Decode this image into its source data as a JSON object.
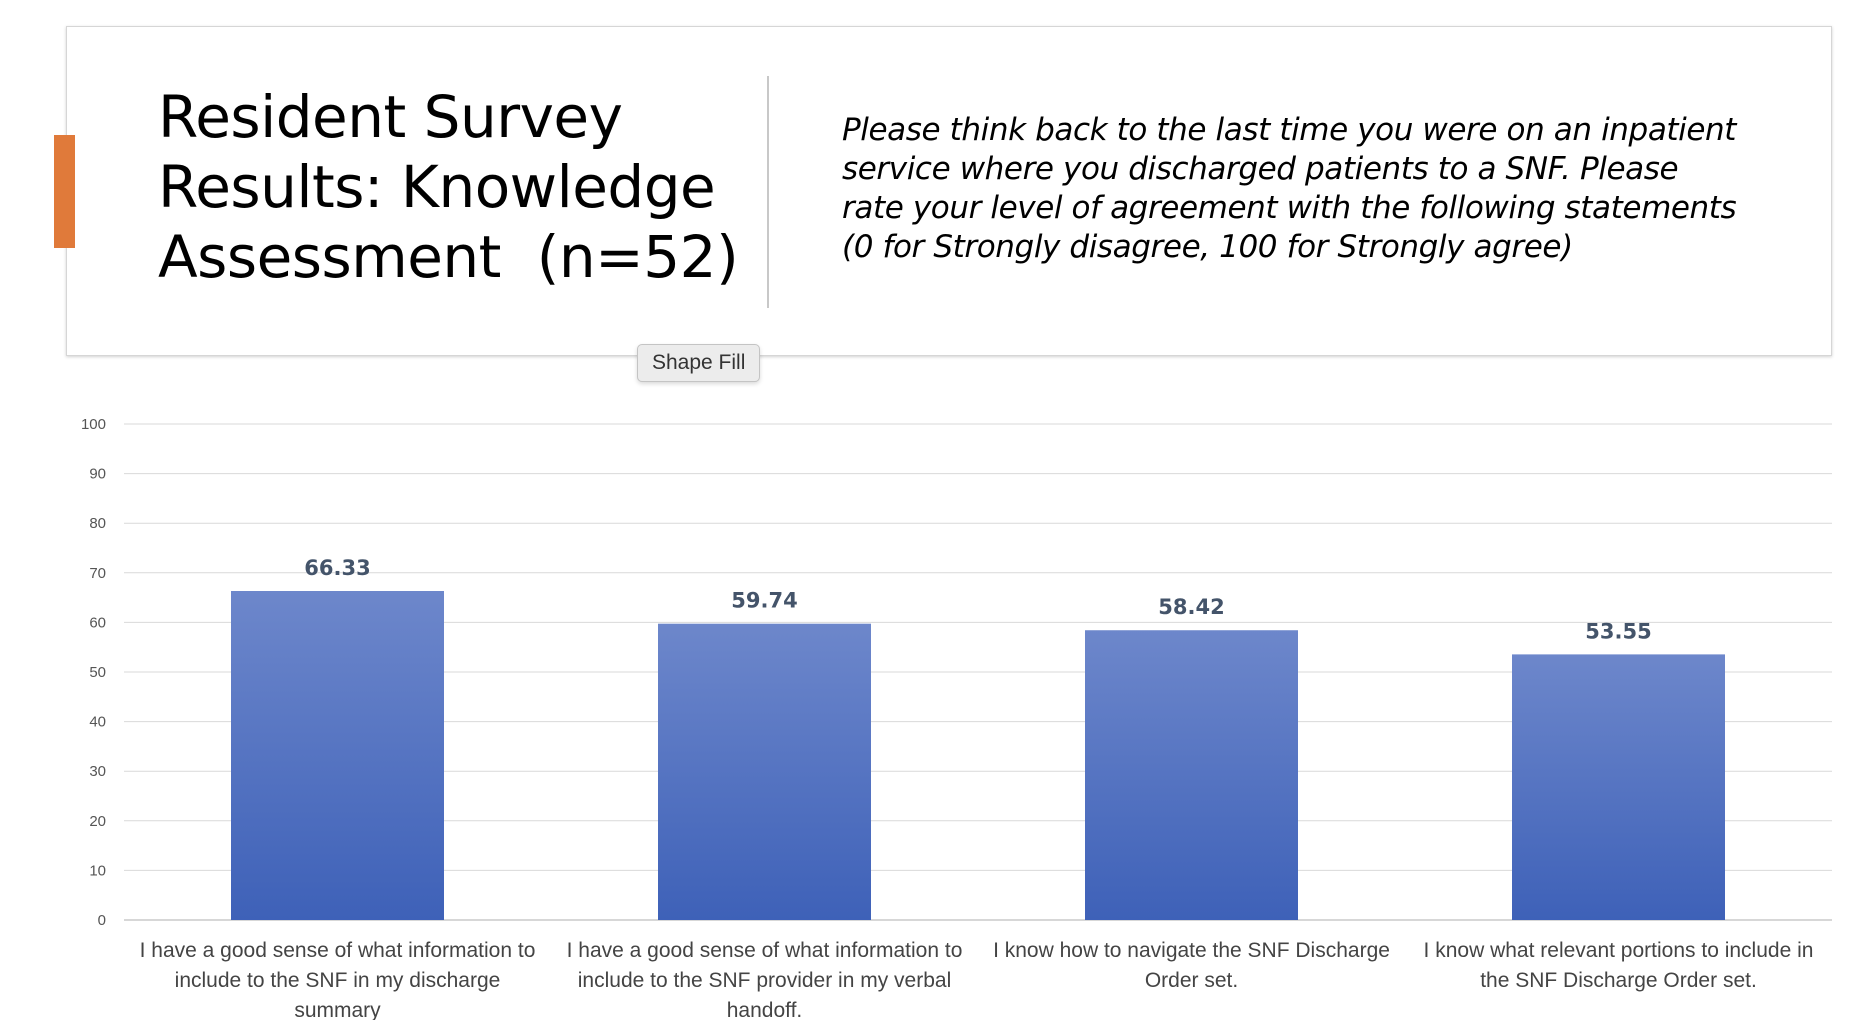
{
  "header": {
    "title_lines": [
      "Resident Survey",
      "Results: Knowledge",
      "Assessment  (n=52)"
    ],
    "question": "Please think back to the last time you were on an inpatient service where you discharged patients to a SNF. Please rate your level of agreement with the following statements (0 for Strongly disagree, 100 for Strongly agree)",
    "accent_color": "#e07a3a"
  },
  "tooltip": {
    "label": "Shape Fill"
  },
  "chart_data": {
    "type": "bar",
    "categories": [
      [
        "I have a good sense of what information to",
        "include to the SNF in my discharge",
        "summary"
      ],
      [
        "I have a good sense of what information to",
        "include to the SNF provider in my verbal",
        "handoff."
      ],
      [
        "I know how to navigate the SNF Discharge",
        "Order set."
      ],
      [
        "I know what relevant portions to include in",
        "the SNF Discharge Order set."
      ]
    ],
    "values": [
      66.33,
      59.74,
      58.42,
      53.55
    ],
    "value_labels": [
      "66.33",
      "59.74",
      "58.42",
      "53.55"
    ],
    "ylim": [
      0,
      100
    ],
    "yticks": [
      0,
      10,
      20,
      30,
      40,
      50,
      60,
      70,
      80,
      90,
      100
    ],
    "grid": true,
    "bar_color_top": "#6d87cb",
    "bar_color_bottom": "#3e61b8"
  }
}
